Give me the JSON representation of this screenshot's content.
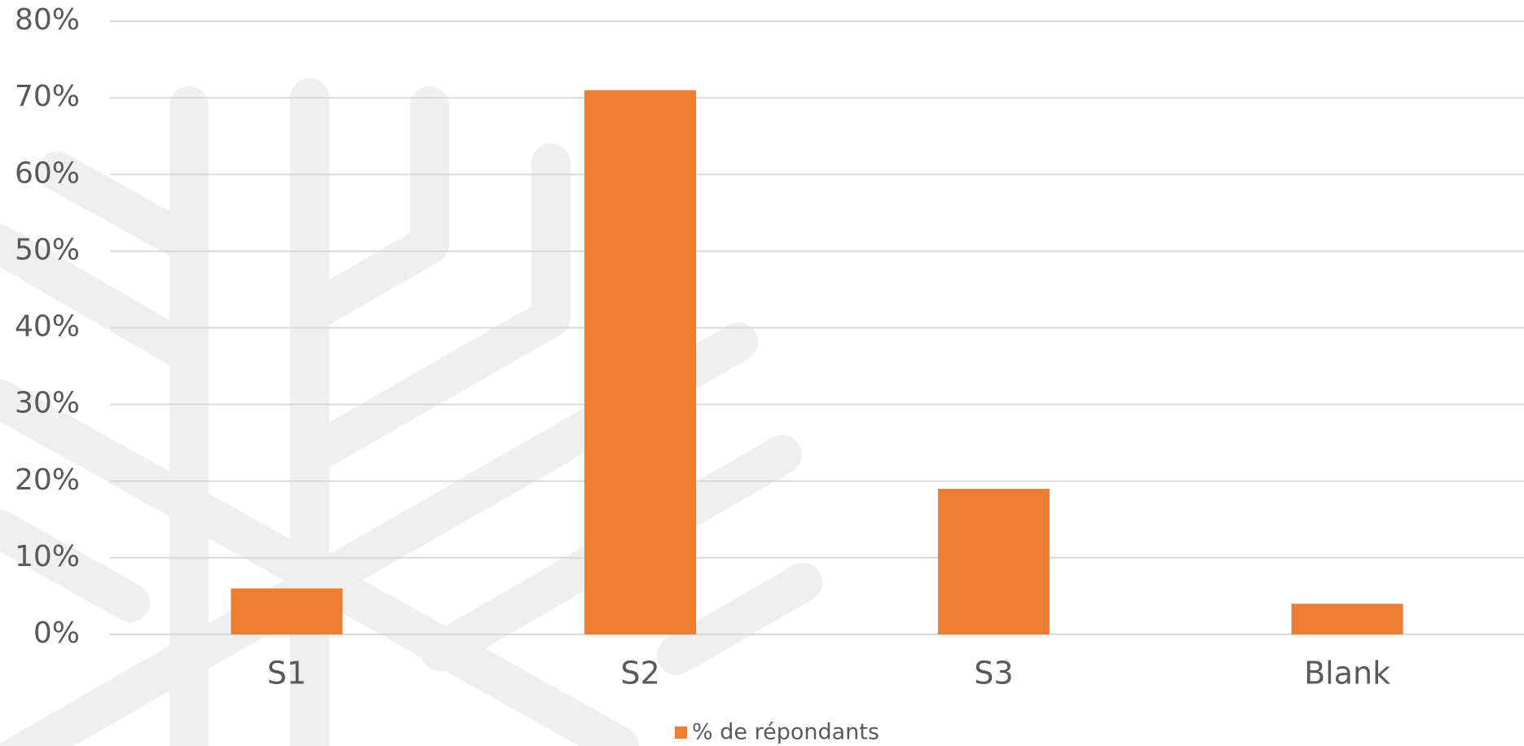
{
  "chart_data": {
    "type": "bar",
    "categories": [
      "S1",
      "S2",
      "S3",
      "Blank"
    ],
    "series": [
      {
        "name": "% de répondants",
        "color": "#ed7d31",
        "values": [
          6,
          71,
          19,
          4
        ]
      }
    ],
    "ylim": [
      0,
      80
    ],
    "yticks": [
      {
        "value": 0,
        "label": "0%"
      },
      {
        "value": 10,
        "label": "10%"
      },
      {
        "value": 20,
        "label": "20%"
      },
      {
        "value": 30,
        "label": "30%"
      },
      {
        "value": 40,
        "label": "40%"
      },
      {
        "value": 50,
        "label": "50%"
      },
      {
        "value": 60,
        "label": "60%"
      },
      {
        "value": 70,
        "label": "70%"
      },
      {
        "value": 80,
        "label": "80%"
      }
    ],
    "grid": true,
    "legend": "bottom"
  }
}
